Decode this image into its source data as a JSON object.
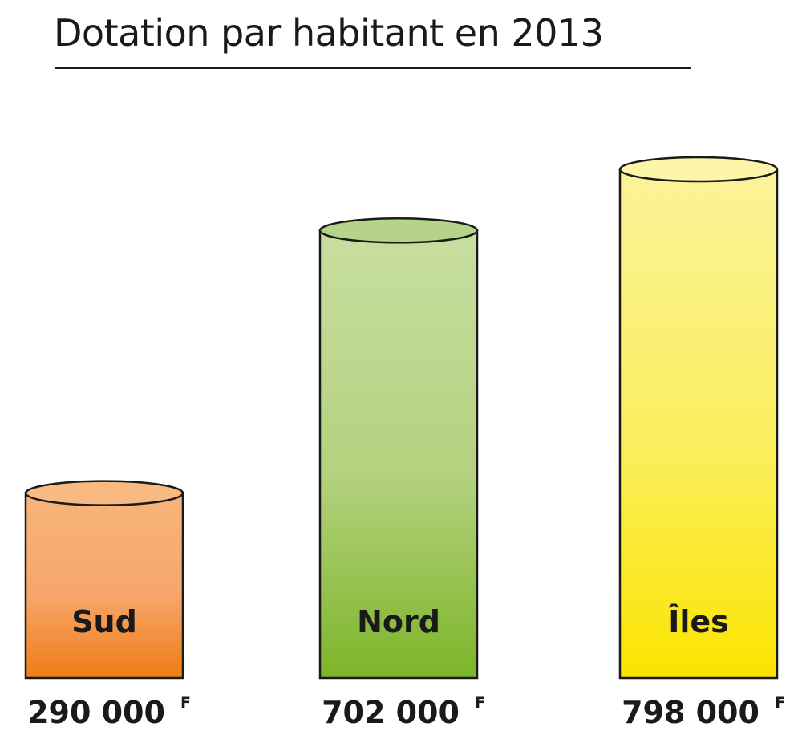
{
  "chart_data": {
    "type": "bar",
    "title": "Dotation par habitant en 2013",
    "categories": [
      "Sud",
      "Nord",
      "Îles"
    ],
    "values": [
      290000,
      702000,
      798000
    ],
    "value_labels": [
      "290 000",
      "702 000",
      "798 000"
    ],
    "unit": "F",
    "colors": {
      "Sud": {
        "top": "#f7b47a",
        "mid": "#f6a66a",
        "bottom": "#ef7d14",
        "cap": "#f9ba82"
      },
      "Nord": {
        "top": "#c8dea0",
        "mid": "#b3d17e",
        "bottom": "#7db529",
        "cap": "#b5d48a"
      },
      "Îles": {
        "top": "#fbf39a",
        "mid": "#fbee5c",
        "bottom": "#fbe400",
        "cap": "#fdf6a8"
      }
    },
    "ylim": [
      0,
      900000
    ],
    "grid": false,
    "legend": "none"
  }
}
